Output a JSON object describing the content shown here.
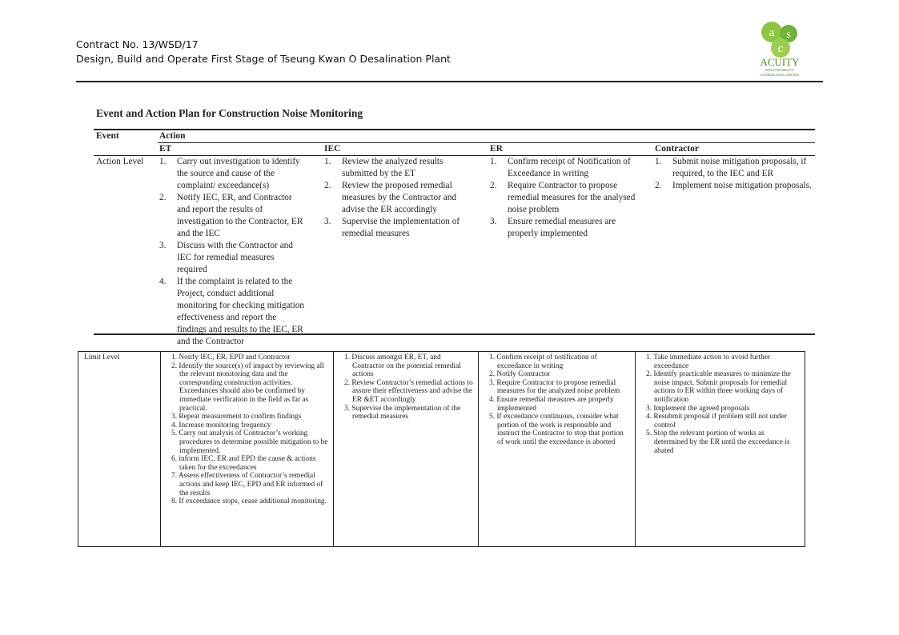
{
  "header": {
    "contract": "Contract No. 13/WSD/17",
    "project": "Design, Build and Operate First Stage of Tseung Kwan O Desalination Plant"
  },
  "logo": {
    "letters": [
      "a",
      "s",
      "c"
    ],
    "name": "ACUITY",
    "tagline": "SUSTAINABILITY",
    "tagline2": "CONSULTING LIMITED"
  },
  "title": "Event and Action Plan for Construction Noise Monitoring",
  "action_table": {
    "headers": {
      "event": "Event",
      "action": "Action"
    },
    "columns": [
      "ET",
      "IEC",
      "ER",
      "Contractor"
    ],
    "rows": [
      {
        "event": "Action Level",
        "cells": [
          [
            {
              "n": "1.",
              "text": "Carry out investigation to identify the source and cause of the complaint/ exceedance(s)"
            },
            {
              "n": "2.",
              "text": "Notify IEC, ER, and Contractor and report the results of investigation to the Contractor, ER and the IEC"
            },
            {
              "n": "3.",
              "text": "Discuss with the Contractor and IEC for remedial measures required"
            },
            {
              "n": "4.",
              "text": "If the complaint is related to the Project, conduct additional monitoring for checking mitigation effectiveness and report the findings and results to the IEC, ER and the Contractor"
            }
          ],
          [
            {
              "n": "1.",
              "text": "Review the analyzed results submitted by the ET"
            },
            {
              "n": "2.",
              "text": "Review the proposed remedial measures by the Contractor and advise the ER accordingly"
            },
            {
              "n": "3.",
              "text": "Supervise the implementation of remedial measures"
            }
          ],
          [
            {
              "n": "1.",
              "text": "Confirm receipt of Notification of Exceedance in writing"
            },
            {
              "n": "2.",
              "text": "Require Contractor to propose remedial measures for the analysed noise problem"
            },
            {
              "n": "3.",
              "text": "Ensure remedial measures are properly implemented"
            }
          ],
          [
            {
              "n": "1.",
              "text": "Submit noise mitigation proposals, if required, to the IEC and ER"
            },
            {
              "n": "2.",
              "text": "Implement noise mitigation proposals."
            }
          ]
        ]
      }
    ]
  },
  "limit_table": {
    "rows": [
      {
        "event": "Limit Level",
        "cells": [
          [
            {
              "n": "1.",
              "text": "Notify IEC, ER, EPD and Contractor"
            },
            {
              "n": "2.",
              "text": "Identify the source(s) of impact by reviewing all the relevant monitoring data and the corresponding construction activities. Exceedances should also be confirmed by immediate verification in the field as far as practical."
            },
            {
              "n": "3.",
              "text": "Repeat measurement to confirm findings"
            },
            {
              "n": "4.",
              "text": "Increase monitoring frequency"
            },
            {
              "n": "5.",
              "text": "Carry out analysis of Contractor’s working procedures to determine possible mitigation to be implemented."
            },
            {
              "n": "6.",
              "text": "inform IEC, ER and EPD the cause & actions taken for the exceedances"
            },
            {
              "n": "7.",
              "text": "Assess effectiveness of Contractor’s remedial actions and keep IEC, EPD and ER informed of the results"
            },
            {
              "n": "8.",
              "text": "If exceedance stops, cease additional monitoring."
            }
          ],
          [
            {
              "n": "1.",
              "text": "Discuss amongst ER, ET, and Contractor on the potential remedial actions"
            },
            {
              "n": "2.",
              "text": "Review Contractor’s remedial actions to assure their effectiveness and advise the ER &ET accordingly"
            },
            {
              "n": "3.",
              "text": "Supervise the implementation of the remedial measures"
            }
          ],
          [
            {
              "n": "1.",
              "text": "Confirm receipt of notification of exceedance in writing"
            },
            {
              "n": "2.",
              "text": "Notify Contractor"
            },
            {
              "n": "3.",
              "text": "Require Contractor to propose remedial measures for the analyzed noise problem"
            },
            {
              "n": "4.",
              "text": "Ensure remedial measures are properly implemented"
            },
            {
              "n": "5.",
              "text": "If exceedance continuous, consider what portion of the work is responsible and instruct the Contractor to stop that portion of work until the exceedance is aborted"
            }
          ],
          [
            {
              "n": "1.",
              "text": "Take immediate action to avoid further exceedance"
            },
            {
              "n": "2.",
              "text": "Identify practicable measures to minimize the noise impact.  Submit proposals for remedial actions to ER within three working days of notification"
            },
            {
              "n": "3.",
              "text": "Implement the agreed proposals"
            },
            {
              "n": "4.",
              "text": "Resubmit proposal if problem still not under control"
            },
            {
              "n": "5.",
              "text": "Stop the relevant portion of works as determined by the ER until the exceedance is abated"
            }
          ]
        ]
      }
    ]
  }
}
